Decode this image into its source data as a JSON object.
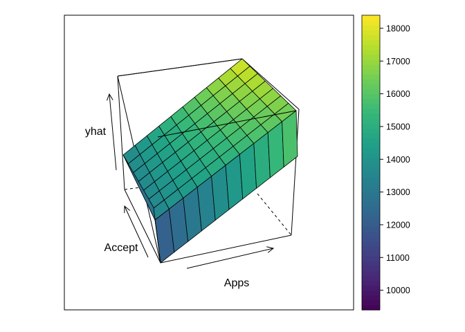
{
  "chart_data": {
    "type": "surface3d",
    "title": "",
    "xlabel": "Apps",
    "ylabel": "Accept",
    "zlabel": "yhat",
    "colorbar": {
      "palette": "viridis",
      "ticks": [
        10000,
        11000,
        12000,
        13000,
        14000,
        15000,
        16000,
        17000,
        18000
      ],
      "range": [
        9400,
        18400
      ]
    },
    "surface": {
      "rows": 7,
      "cols": 10,
      "z_front_low": 12000,
      "z_front_high": 16000,
      "z_back_low": 13600,
      "z_back_high": 17200,
      "z_top": 18000
    }
  }
}
